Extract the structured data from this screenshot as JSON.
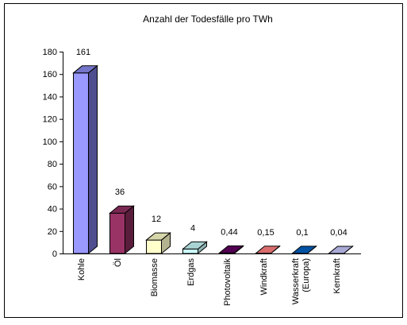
{
  "chart_data": {
    "type": "bar",
    "title": "Anzahl der Todesfälle pro TWh",
    "xlabel": "",
    "ylabel": "",
    "ylim": [
      0,
      180
    ],
    "yticks": [
      0,
      20,
      40,
      60,
      80,
      100,
      120,
      140,
      160,
      180
    ],
    "grid": false,
    "legend": "none",
    "categories": [
      [
        "Kohle"
      ],
      [
        "Öl"
      ],
      [
        "Biomasse"
      ],
      [
        "Erdgas"
      ],
      [
        "Photovoltaik"
      ],
      [
        "Windkraft"
      ],
      [
        "Wasserkraft",
        "(Europa)"
      ],
      [
        "Kernkraft"
      ]
    ],
    "values": [
      161,
      36,
      12,
      4,
      0.44,
      0.15,
      0.1,
      0.04
    ],
    "value_labels": [
      "161",
      "36",
      "12",
      "4",
      "0,44",
      "0,15",
      "0,1",
      "0,04"
    ],
    "colors": [
      {
        "front": "#9999ff",
        "side": "#4d4d8f",
        "top": "#7474c8"
      },
      {
        "front": "#993366",
        "side": "#5a1e3c",
        "top": "#7a2952"
      },
      {
        "front": "#ffffcc",
        "side": "#b3b38f",
        "top": "#d6d6ab"
      },
      {
        "front": "#ccffff",
        "side": "#8fb3b3",
        "top": "#a9d3d3"
      },
      {
        "front": "#660066",
        "side": "#3d003d",
        "top": "#520052"
      },
      {
        "front": "#ff8080",
        "side": "#b35a5a",
        "top": "#d96d6d"
      },
      {
        "front": "#0066cc",
        "side": "#003d7a",
        "top": "#0052a3"
      },
      {
        "front": "#ccccff",
        "side": "#8f8fb3",
        "top": "#aaaad6"
      }
    ]
  }
}
